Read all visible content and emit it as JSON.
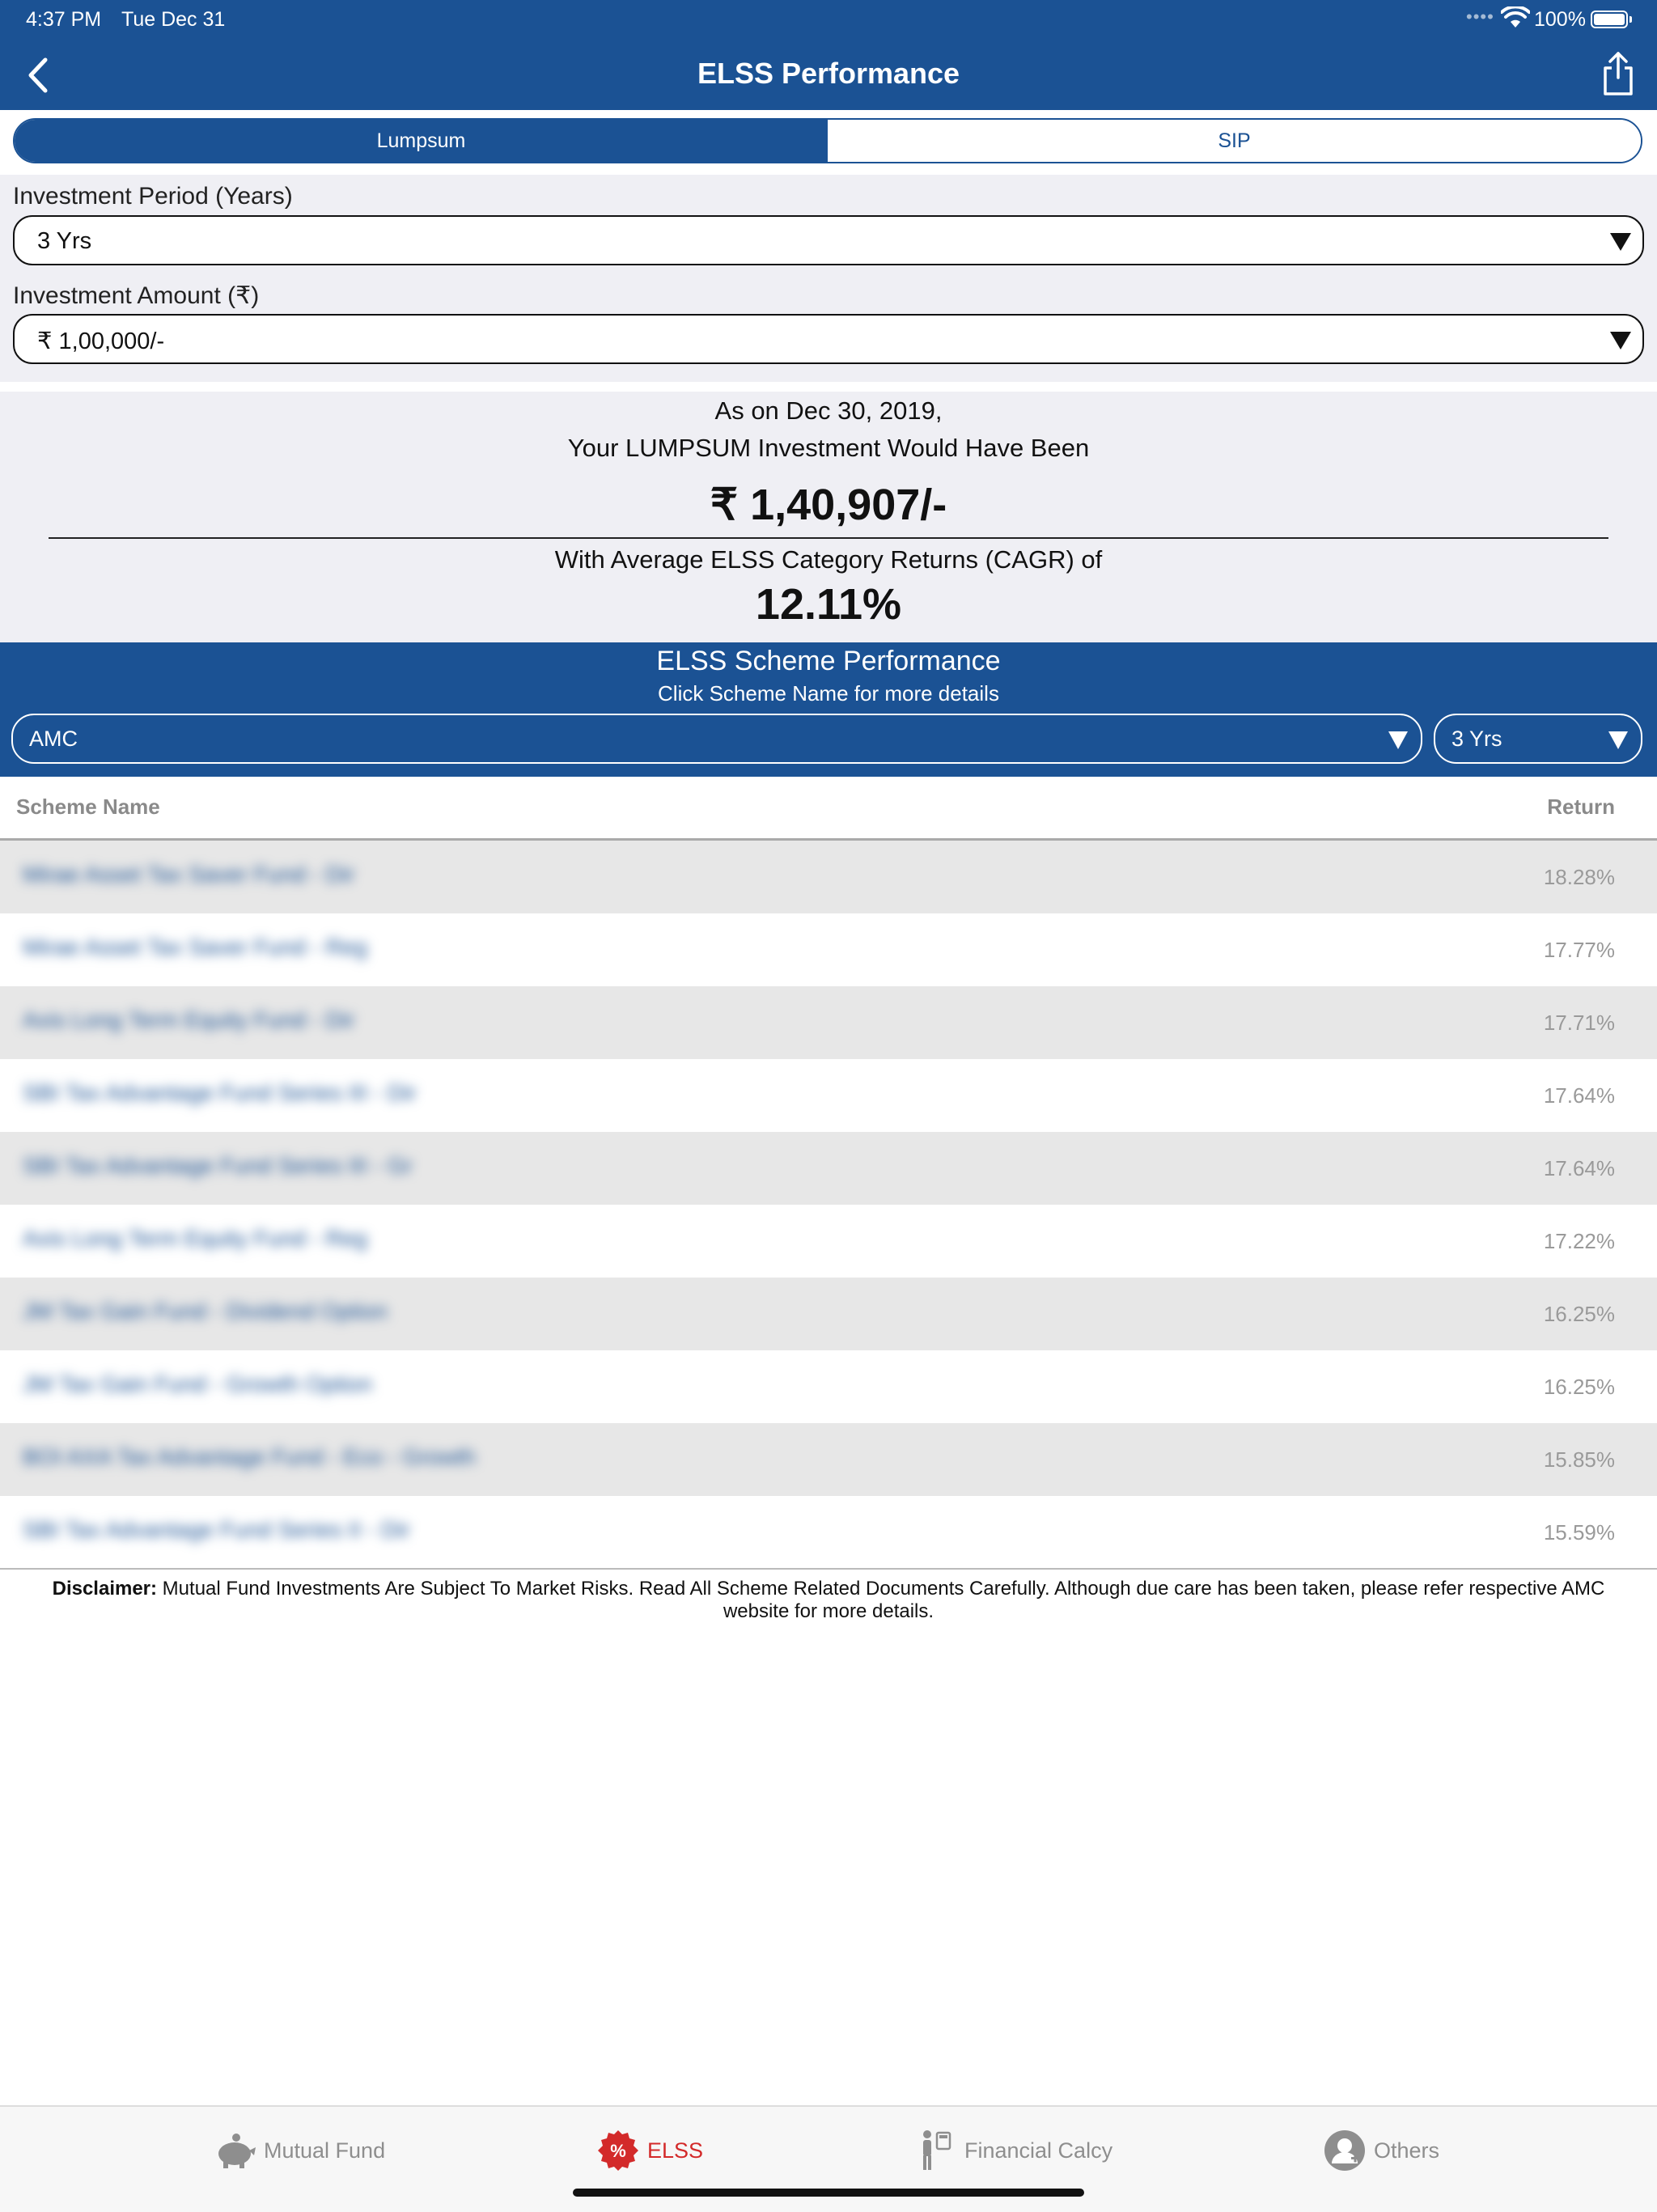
{
  "status_bar": {
    "time": "4:37 PM",
    "date": "Tue Dec 31",
    "signal_dots": "••••",
    "battery": "100%"
  },
  "nav": {
    "title": "ELSS Performance",
    "back_icon": "chevron-left-icon",
    "share_icon": "share-icon"
  },
  "segment": {
    "options": [
      {
        "label": "Lumpsum",
        "selected": true
      },
      {
        "label": "SIP",
        "selected": false
      }
    ]
  },
  "form": {
    "period_label": "Investment Period (Years)",
    "period_value": "3 Yrs",
    "amount_label": "Investment Amount (₹)",
    "amount_value": "₹ 1,00,000/-"
  },
  "summary": {
    "line1": "As on Dec 30, 2019,",
    "line2": "Your LUMPSUM Investment Would Have Been",
    "amount": "₹ 1,40,907/-",
    "line3": "With Average ELSS Category Returns (CAGR) of",
    "cagr": "12.11%"
  },
  "performance": {
    "title": "ELSS Scheme Performance",
    "subtitle": "Click Scheme Name for more details",
    "amc_filter": "AMC",
    "period_filter": "3 Yrs"
  },
  "table": {
    "col_scheme": "Scheme Name",
    "col_return": "Return",
    "rows": [
      {
        "name": "Mirae Asset Tax Saver Fund - Dir",
        "return": "18.28%"
      },
      {
        "name": "Mirae Asset Tax Saver Fund - Reg",
        "return": "17.77%"
      },
      {
        "name": "Axis Long Term Equity Fund - Dir",
        "return": "17.71%"
      },
      {
        "name": "SBI Tax Advantage Fund Series III - Dir",
        "return": "17.64%"
      },
      {
        "name": "SBI Tax Advantage Fund Series III - Gr",
        "return": "17.64%"
      },
      {
        "name": "Axis Long Term Equity Fund - Reg",
        "return": "17.22%"
      },
      {
        "name": "JM Tax Gain Fund - Dividend Option",
        "return": "16.25%"
      },
      {
        "name": "JM Tax Gain Fund - Growth Option",
        "return": "16.25%"
      },
      {
        "name": "BOI AXA Tax Advantage Fund - Eco - Growth",
        "return": "15.85%"
      },
      {
        "name": "SBI Tax Advantage Fund Series II - Dir",
        "return": "15.59%"
      }
    ]
  },
  "disclaimer": {
    "label": "Disclaimer:",
    "text": " Mutual Fund Investments Are Subject To Market Risks. Read All Scheme Related Documents Carefully. Although due care has been taken, please refer respective AMC website for more details."
  },
  "tabs": [
    {
      "label": "Mutual Fund",
      "icon": "piggy-bank-icon",
      "active": false
    },
    {
      "label": "ELSS",
      "icon": "percent-badge-icon",
      "active": true
    },
    {
      "label": "Financial Calcy",
      "icon": "person-calculator-icon",
      "active": false
    },
    {
      "label": "Others",
      "icon": "user-plus-icon",
      "active": false
    }
  ],
  "colors": {
    "brand": "#1b5294",
    "active_tab": "#d32a2a",
    "row_shade": "#e7e7e7"
  }
}
